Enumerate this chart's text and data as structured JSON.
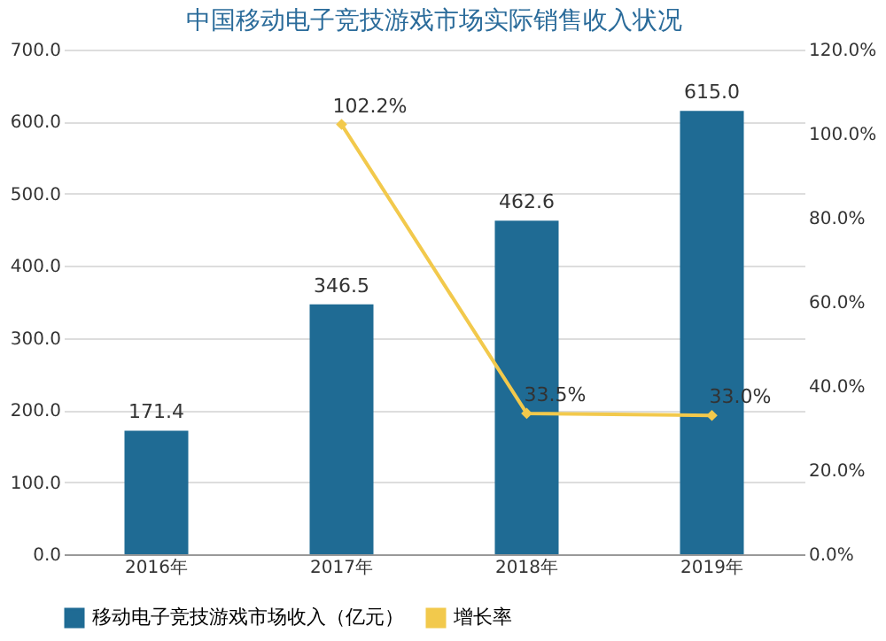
{
  "chart_data": {
    "type": "bar",
    "title": "中国移动电子竞技游戏市场实际销售收入状况",
    "categories": [
      "2016年",
      "2017年",
      "2018年",
      "2019年"
    ],
    "series": [
      {
        "name": "移动电子竞技游戏市场收入（亿元）",
        "color": "#1f6b94",
        "values": [
          171.4,
          346.5,
          462.6,
          615.0
        ],
        "value_labels": [
          "171.4",
          "346.5",
          "462.6",
          "615.0"
        ]
      },
      {
        "name": "增长率",
        "type": "line",
        "axis": "y2",
        "color": "#f2c94c",
        "marker": "diamond",
        "values": [
          null,
          102.2,
          33.5,
          33.0
        ],
        "value_labels": [
          null,
          "102.2%",
          "33.5%",
          "33.0%"
        ]
      }
    ],
    "ylim": [
      0,
      700
    ],
    "yticks": [
      {
        "value": 0,
        "label": "0.0"
      },
      {
        "value": 100,
        "label": "100.0"
      },
      {
        "value": 200,
        "label": "200.0"
      },
      {
        "value": 300,
        "label": "300.0"
      },
      {
        "value": 400,
        "label": "400.0"
      },
      {
        "value": 500,
        "label": "500.0"
      },
      {
        "value": 600,
        "label": "600.0"
      },
      {
        "value": 700,
        "label": "700.0"
      }
    ],
    "y2lim": [
      0,
      120
    ],
    "y2ticks": [
      {
        "value": 0,
        "label": "0.0%"
      },
      {
        "value": 20,
        "label": "20.0%"
      },
      {
        "value": 40,
        "label": "40.0%"
      },
      {
        "value": 60,
        "label": "60.0%"
      },
      {
        "value": 80,
        "label": "80.0%"
      },
      {
        "value": 100,
        "label": "100.0%"
      },
      {
        "value": 120,
        "label": "120.0%"
      }
    ],
    "grid": "y",
    "legend": "bottom"
  }
}
